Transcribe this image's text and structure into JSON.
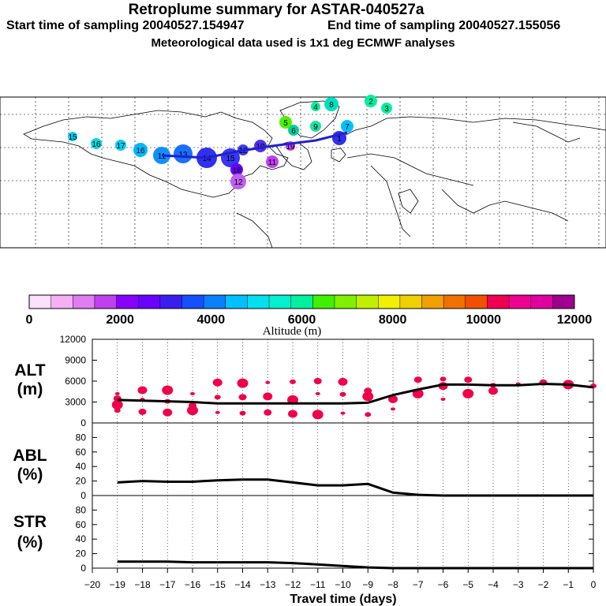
{
  "header": {
    "title": "Retroplume summary for ASTAR-040527a",
    "start_label": "Start time of sampling 20040527.154947",
    "end_label": "End time of sampling 20040527.155056",
    "met_label": "Meteorological data used is 1x1 deg ECMWF analyses"
  },
  "map": {
    "plume_labels": [
      "15",
      "16",
      "17",
      "16",
      "11",
      "13",
      "14",
      "15",
      "18",
      "12",
      "10",
      "11",
      "12",
      "19",
      "6",
      "5",
      "7",
      "8",
      "9",
      "2",
      "3",
      "4",
      "1"
    ]
  },
  "colorbar": {
    "colors": [
      "#fde0fb",
      "#f5b0f5",
      "#e07df0",
      "#c040f0",
      "#8a00ff",
      "#6a00ff",
      "#3a1ef0",
      "#1450ff",
      "#0a80ff",
      "#00c0ff",
      "#00e0f0",
      "#00f0d0",
      "#00f0a0",
      "#40f000",
      "#80f000",
      "#c0f000",
      "#f0f000",
      "#f0d000",
      "#f0a000",
      "#f07000",
      "#f05000",
      "#f00050",
      "#f00090",
      "#e000a0",
      "#a00090"
    ],
    "tick_labels": [
      "0",
      "2000",
      "4000",
      "6000",
      "8000",
      "10000",
      "12000"
    ],
    "xlabel": "Altitude (m)"
  },
  "chart_data": [
    {
      "type": "line",
      "name": "ALT",
      "ylabel_top": "ALT",
      "ylabel_bottom": "(m)",
      "ylim": [
        0,
        12000
      ],
      "yticks": [
        "0",
        "3000",
        "6000",
        "9000",
        "12000"
      ],
      "x": [
        -19,
        -18,
        -17,
        -16,
        -15,
        -14,
        -13,
        -12,
        -11,
        -10,
        -9,
        -8,
        -7,
        -6,
        -5,
        -4,
        -3,
        -2,
        -1,
        0
      ],
      "values": [
        3300,
        3200,
        3100,
        3000,
        2800,
        2800,
        2800,
        2800,
        2800,
        2800,
        2900,
        4000,
        4800,
        5500,
        5500,
        5400,
        5400,
        5600,
        5500,
        5100
      ],
      "scatter_points": [
        [
          -19,
          4200
        ],
        [
          -19,
          3500
        ],
        [
          -19,
          2600
        ],
        [
          -19,
          1800
        ],
        [
          -18,
          4700
        ],
        [
          -18,
          3400
        ],
        [
          -18,
          1600
        ],
        [
          -17,
          4700
        ],
        [
          -17,
          3100
        ],
        [
          -17,
          1500
        ],
        [
          -16,
          4200
        ],
        [
          -16,
          2500
        ],
        [
          -16,
          1800
        ],
        [
          -15,
          3700
        ],
        [
          -15,
          5800
        ],
        [
          -15,
          1500
        ],
        [
          -14,
          3700
        ],
        [
          -14,
          5700
        ],
        [
          -14,
          1400
        ],
        [
          -13,
          3800
        ],
        [
          -13,
          5800
        ],
        [
          -13,
          1500
        ],
        [
          -12,
          3300
        ],
        [
          -12,
          5900
        ],
        [
          -12,
          1300
        ],
        [
          -11,
          4200
        ],
        [
          -11,
          6000
        ],
        [
          -11,
          1200
        ],
        [
          -10,
          4100
        ],
        [
          -10,
          5900
        ],
        [
          -10,
          1400
        ],
        [
          -9,
          4600
        ],
        [
          -9,
          3800
        ],
        [
          -9,
          1200
        ],
        [
          -8,
          3400
        ],
        [
          -8,
          2000
        ],
        [
          -7,
          6200
        ],
        [
          -7,
          4200
        ],
        [
          -6,
          6300
        ],
        [
          -6,
          5300
        ],
        [
          -6,
          3400
        ],
        [
          -5,
          6200
        ],
        [
          -5,
          4200
        ],
        [
          -4,
          5400
        ],
        [
          -4,
          4600
        ],
        [
          -3,
          5600
        ],
        [
          -2,
          5800
        ],
        [
          -1,
          5500
        ],
        [
          0,
          5300
        ]
      ]
    },
    {
      "type": "line",
      "name": "ABL",
      "ylabel_top": "ABL",
      "ylabel_bottom": "(%)",
      "ylim": [
        0,
        100
      ],
      "yticks": [
        "0",
        "20",
        "40",
        "60",
        "80"
      ],
      "x": [
        -19,
        -18,
        -17,
        -16,
        -15,
        -14,
        -13,
        -12,
        -11,
        -10,
        -9,
        -8,
        -7,
        -6,
        -5,
        -4,
        -3,
        -2,
        -1,
        0
      ],
      "values": [
        18,
        20,
        19,
        19,
        21,
        22,
        22,
        18,
        14,
        14,
        16,
        4,
        1,
        0,
        0,
        0,
        0,
        0,
        0,
        0
      ]
    },
    {
      "type": "line",
      "name": "STR",
      "ylabel_top": "STR",
      "ylabel_bottom": "(%)",
      "ylim": [
        0,
        100
      ],
      "yticks": [
        "0",
        "20",
        "40",
        "60",
        "80"
      ],
      "x": [
        -19,
        -18,
        -17,
        -16,
        -15,
        -14,
        -13,
        -12,
        -11,
        -10,
        -9,
        -8,
        -7,
        -6,
        -5,
        -4,
        -3,
        -2,
        -1,
        0
      ],
      "values": [
        9,
        9,
        9,
        8,
        8,
        8,
        8,
        7,
        5,
        3,
        1,
        0,
        0,
        0,
        0,
        0,
        0,
        0,
        0,
        0
      ]
    }
  ],
  "xaxis": {
    "xlabel": "Travel time (days)",
    "tick_labels": [
      "−20",
      "−19",
      "−18",
      "−17",
      "−16",
      "−15",
      "−14",
      "−13",
      "−12",
      "−11",
      "−10",
      "−9",
      "−8",
      "−7",
      "−6",
      "−5",
      "−4",
      "−3",
      "−2",
      "−1",
      "0"
    ]
  }
}
